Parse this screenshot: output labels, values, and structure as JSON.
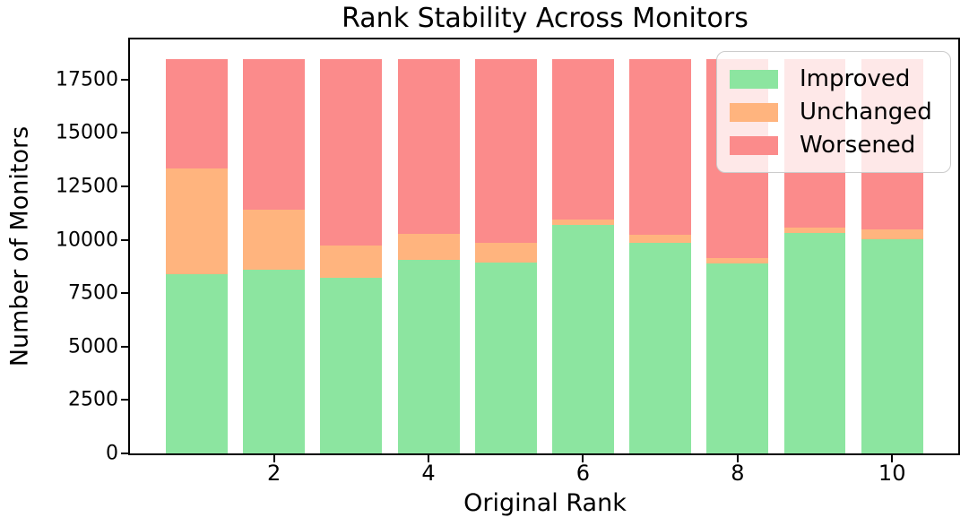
{
  "figure": {
    "background": "#ffffff",
    "spine_color": "#000000",
    "tick_color": "#000000"
  },
  "chart_data": {
    "type": "bar",
    "stacked": true,
    "title": "Rank Stability Across Monitors",
    "xlabel": "Original Rank",
    "ylabel": "Number of Monitors",
    "categories": [
      1,
      2,
      3,
      4,
      5,
      6,
      7,
      8,
      9,
      10
    ],
    "series": [
      {
        "name": "Improved",
        "color": "#8CE5A0",
        "values": [
          8380,
          8610,
          8210,
          9060,
          8920,
          10690,
          9840,
          8880,
          10340,
          10020
        ]
      },
      {
        "name": "Unchanged",
        "color": "#FFB47E",
        "values": [
          4950,
          2810,
          1510,
          1200,
          930,
          250,
          410,
          260,
          240,
          460
        ]
      },
      {
        "name": "Worsened",
        "color": "#FB8B8B",
        "values": [
          5110,
          7020,
          8720,
          8180,
          8590,
          7500,
          8190,
          9300,
          7860,
          7960
        ]
      }
    ],
    "total_per_bar": 18440,
    "bar_width": 0.8,
    "xlim": [
      0.136,
      10.856
    ],
    "ylim": [
      0,
      19380
    ],
    "yticks": [
      0,
      2500,
      5000,
      7500,
      10000,
      12500,
      15000,
      17500
    ],
    "ytick_labels": [
      "0",
      "2500",
      "5000",
      "7500",
      "10000",
      "12500",
      "15000",
      "17500"
    ],
    "xticks": [
      2,
      4,
      6,
      8,
      10
    ],
    "xtick_labels": [
      "2",
      "4",
      "6",
      "8",
      "10"
    ],
    "grid": false,
    "legend_position": "upper right",
    "legend_entries": [
      "Improved",
      "Unchanged",
      "Worsened"
    ]
  }
}
